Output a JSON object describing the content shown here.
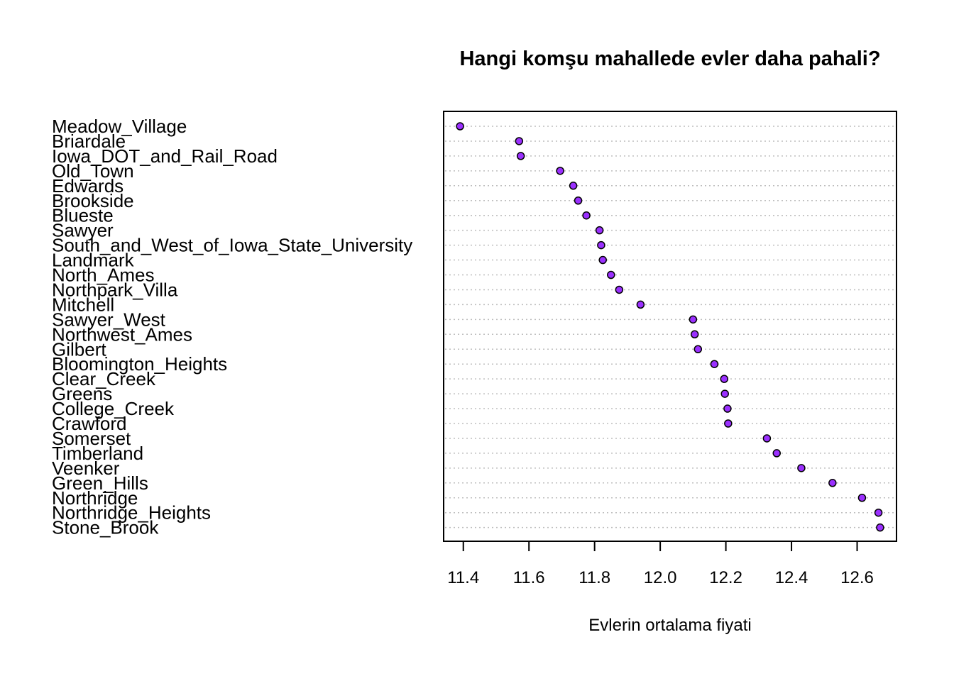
{
  "chart_data": {
    "type": "scatter",
    "subtype": "dotchart",
    "title": "Hangi komşu mahallede evler daha pahali?",
    "xlabel": "Evlerin ortalama fiyati",
    "ylabel": "",
    "xlim": [
      11.34,
      12.72
    ],
    "xticks": [
      11.4,
      11.6,
      11.8,
      12.0,
      12.2,
      12.4,
      12.6
    ],
    "xtick_labels": [
      "11.4",
      "11.6",
      "11.8",
      "12.0",
      "12.2",
      "12.4",
      "12.6"
    ],
    "grid": "dotted horizontal lines per category",
    "point_color": "#9b30ff",
    "point_edge_color": "#000000",
    "grid_color": "#bebebe",
    "categories": [
      "Meadow_Village",
      "Briardale",
      "Iowa_DOT_and_Rail_Road",
      "Old_Town",
      "Edwards",
      "Brookside",
      "Blueste",
      "Sawyer",
      "South_and_West_of_Iowa_State_University",
      "Landmark",
      "North_Ames",
      "Northpark_Villa",
      "Mitchell",
      "Sawyer_West",
      "Northwest_Ames",
      "Gilbert",
      "Bloomington_Heights",
      "Clear_Creek",
      "Greens",
      "College_Creek",
      "Crawford",
      "Somerset",
      "Timberland",
      "Veenker",
      "Green_Hills",
      "Northridge",
      "Northridge_Heights",
      "Stone_Brook"
    ],
    "values": [
      11.39,
      11.57,
      11.575,
      11.695,
      11.735,
      11.75,
      11.775,
      11.815,
      11.82,
      11.825,
      11.85,
      11.875,
      11.94,
      12.1,
      12.105,
      12.115,
      12.165,
      12.195,
      12.197,
      12.205,
      12.207,
      12.325,
      12.355,
      12.43,
      12.525,
      12.615,
      12.665,
      12.67
    ]
  }
}
